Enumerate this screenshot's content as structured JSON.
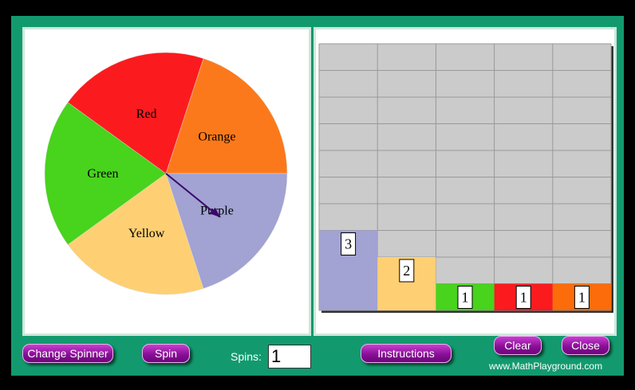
{
  "spinner": {
    "sections": [
      {
        "label": "Orange",
        "color": "#fc791b"
      },
      {
        "label": "Purple",
        "color": "#a2a2d3"
      },
      {
        "label": "Yellow",
        "color": "#fed073"
      },
      {
        "label": "Green",
        "color": "#48d31c"
      },
      {
        "label": "Red",
        "color": "#fb1b1e"
      }
    ]
  },
  "graph": {
    "bars": [
      {
        "count": 3,
        "color": "#a2a2d3"
      },
      {
        "count": 2,
        "color": "#fed073"
      },
      {
        "count": 1,
        "color": "#48d31c"
      },
      {
        "count": 1,
        "color": "#fb1b1e"
      },
      {
        "count": 1,
        "color": "#fc6c0a"
      }
    ]
  },
  "controls": {
    "change_spinner": "Change Spinner",
    "spin": "Spin",
    "spins_label": "Spins:",
    "spins_value": 1,
    "instructions": "Instructions",
    "clear": "Clear",
    "close": "Close"
  },
  "footer": "www.MathPlayground.com"
}
